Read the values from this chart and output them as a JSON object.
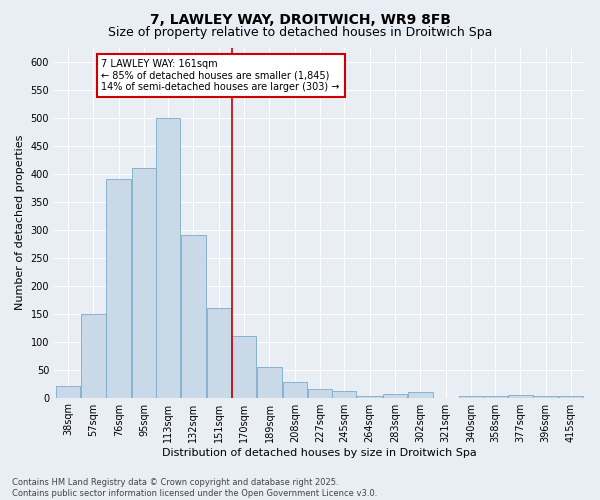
{
  "title1": "7, LAWLEY WAY, DROITWICH, WR9 8FB",
  "title2": "Size of property relative to detached houses in Droitwich Spa",
  "xlabel": "Distribution of detached houses by size in Droitwich Spa",
  "ylabel": "Number of detached properties",
  "annotation_title": "7 LAWLEY WAY: 161sqm",
  "annotation_line1": "← 85% of detached houses are smaller (1,845)",
  "annotation_line2": "14% of semi-detached houses are larger (303) →",
  "property_size": 161,
  "bin_centers": [
    38,
    57,
    76,
    95,
    113,
    132,
    151,
    170,
    189,
    208,
    227,
    245,
    264,
    283,
    302,
    321,
    340,
    358,
    377,
    396,
    415
  ],
  "counts": [
    20,
    150,
    390,
    410,
    500,
    290,
    160,
    110,
    55,
    28,
    15,
    12,
    3,
    7,
    10,
    0,
    3,
    2,
    5,
    2,
    2
  ],
  "bar_color": "#c9d9e8",
  "bar_edge_color": "#7aaac8",
  "vline_color": "#cc0000",
  "annotation_box_color": "#cc0000",
  "background_color": "#e8eef4",
  "grid_color": "#ffffff",
  "footer_line1": "Contains HM Land Registry data © Crown copyright and database right 2025.",
  "footer_line2": "Contains public sector information licensed under the Open Government Licence v3.0.",
  "title_fontsize": 10,
  "subtitle_fontsize": 9,
  "tick_fontsize": 7,
  "ylabel_fontsize": 8,
  "xlabel_fontsize": 8,
  "annotation_fontsize": 7,
  "footer_fontsize": 6,
  "ylim": [
    0,
    625
  ],
  "yticks": [
    0,
    50,
    100,
    150,
    200,
    250,
    300,
    350,
    400,
    450,
    500,
    550,
    600
  ]
}
